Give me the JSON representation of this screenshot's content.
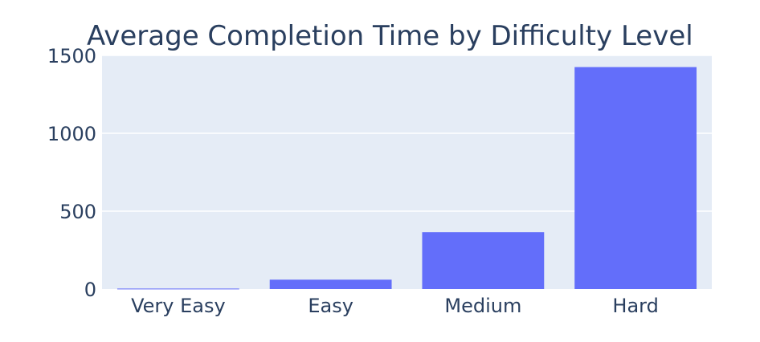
{
  "chart_data": {
    "type": "bar",
    "title": "Average Completion Time by Difficulty Level",
    "xlabel": "",
    "ylabel": "",
    "categories": [
      "Very Easy",
      "Easy",
      "Medium",
      "Hard"
    ],
    "values": [
      3,
      60,
      365,
      1425
    ],
    "ylim": [
      0,
      1500
    ],
    "yticks": [
      0,
      500,
      1000,
      1500
    ],
    "grid": true,
    "colors": {
      "bar": "#636efa",
      "plot_background": "#e5ecf6",
      "gridline": "#ffffff",
      "text": "#2a3f5f"
    }
  }
}
